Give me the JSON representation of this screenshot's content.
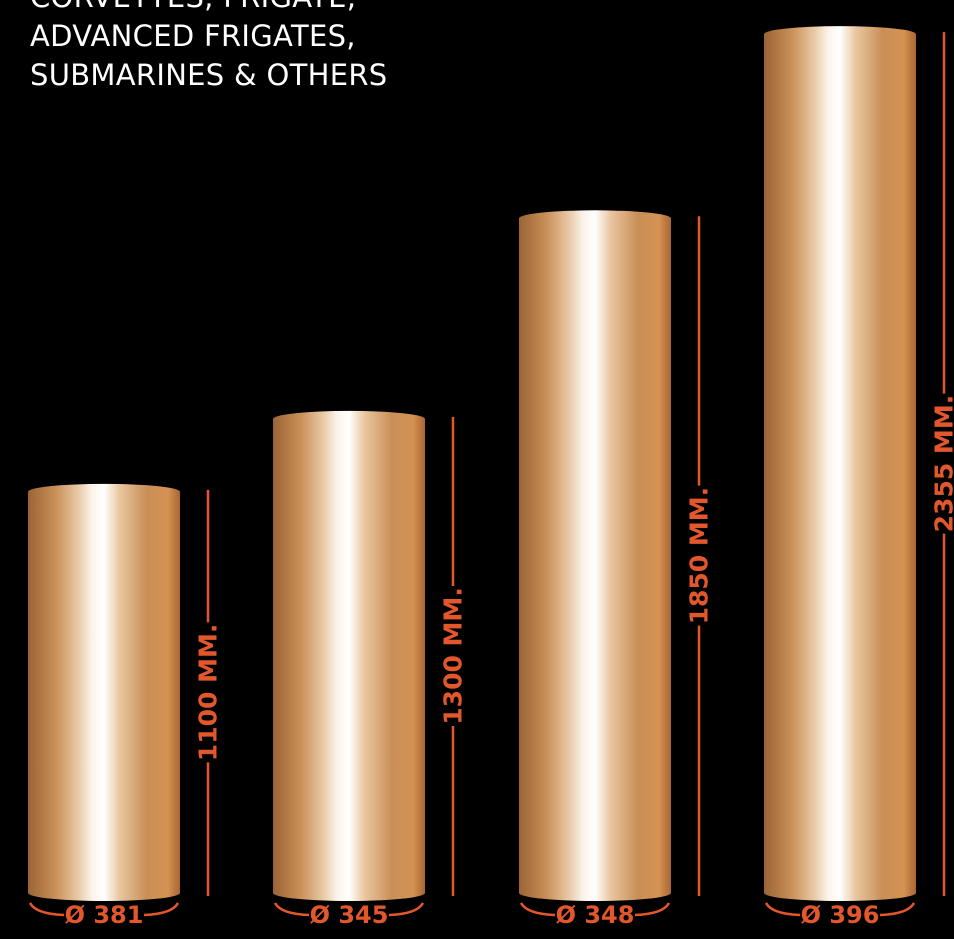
{
  "title": {
    "lines": [
      "CORVETTES, FRIGATE,",
      "ADVANCED FRIGATES,",
      "SUBMARINES & OTHERS"
    ]
  },
  "colors": {
    "accent": "#e2572b",
    "background": "#000000",
    "copper_dark": "#9b6436",
    "copper_mid": "#c98f57",
    "copper_light": "#fbf3ea"
  },
  "products": [
    {
      "length_mm": 1100,
      "length_label": "1100 MM.",
      "diameter": 381,
      "diameter_label": "Ø 381"
    },
    {
      "length_mm": 1300,
      "length_label": "1300 MM.",
      "diameter": 345,
      "diameter_label": "Ø 345"
    },
    {
      "length_mm": 1850,
      "length_label": "1850 MM.",
      "diameter": 348,
      "diameter_label": "Ø 348"
    },
    {
      "length_mm": 2355,
      "length_label": "2355 MM.",
      "diameter": 396,
      "diameter_label": "Ø 396"
    }
  ]
}
